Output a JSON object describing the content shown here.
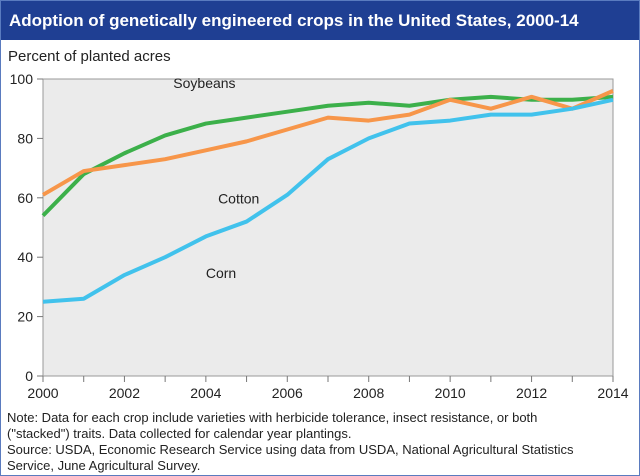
{
  "chart_data": {
    "type": "line",
    "title": "Adoption of genetically engineered crops in the United States, 2000-14",
    "ylabel": "Percent of planted acres",
    "xlabel": "",
    "x": [
      2000,
      2001,
      2002,
      2003,
      2004,
      2005,
      2006,
      2007,
      2008,
      2009,
      2010,
      2011,
      2012,
      2013,
      2014
    ],
    "xticks": [
      "2000",
      "2002",
      "2004",
      "2006",
      "2008",
      "2010",
      "2012",
      "2014"
    ],
    "yticks": [
      "0",
      "20",
      "40",
      "60",
      "80",
      "100"
    ],
    "ylim": [
      0,
      100
    ],
    "xlim": [
      2000,
      2014
    ],
    "grid": false,
    "series": [
      {
        "name": "Soybeans",
        "color": "#3cb04a",
        "values": [
          54,
          68,
          75,
          81,
          85,
          87,
          89,
          91,
          92,
          91,
          93,
          94,
          93,
          93,
          94
        ]
      },
      {
        "name": "Cotton",
        "color": "#f7964a",
        "values": [
          61,
          69,
          71,
          73,
          76,
          79,
          83,
          87,
          86,
          88,
          93,
          90,
          94,
          90,
          96
        ]
      },
      {
        "name": "Corn",
        "color": "#41c2ec",
        "values": [
          25,
          26,
          34,
          40,
          47,
          52,
          61,
          73,
          80,
          85,
          86,
          88,
          88,
          90,
          93
        ]
      }
    ],
    "notes": [
      "Note: Data for each crop include varieties with herbicide tolerance, insect resistance, or both",
      "(\"stacked\") traits. Data collected for calendar year plantings.",
      "Source: USDA, Economic Research Service using data from USDA, National Agricultural Statistics",
      "Service, June Agricultural Survey."
    ]
  }
}
